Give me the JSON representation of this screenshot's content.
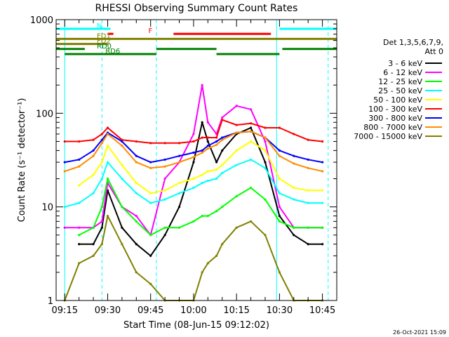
{
  "chart_data": {
    "type": "line",
    "title": "RHESSI Observing Summary Count Rates",
    "xlabel": "Start Time (08-Jun-15 09:12:02)",
    "ylabel": "Count Rate (s⁻¹ detector⁻¹)",
    "yscale": "log",
    "ylim": [
      1,
      1000
    ],
    "xlim": [
      "09:12",
      "10:50"
    ],
    "x_ticks": [
      "09:15",
      "09:30",
      "09:45",
      "10:00",
      "10:15",
      "10:30",
      "10:45"
    ],
    "y_ticks": [
      "1",
      "10",
      "100",
      "1000"
    ],
    "grid": false,
    "legend_position": "right",
    "legend_header": [
      "Det 1,3,5,6,7,9,",
      "Att 0"
    ],
    "timestamp": "26-Oct-2021 15:09",
    "x": [
      "09:15",
      "09:20",
      "09:25",
      "09:28",
      "09:30",
      "09:35",
      "09:40",
      "09:45",
      "09:50",
      "09:55",
      "10:00",
      "10:03",
      "10:05",
      "10:08",
      "10:10",
      "10:15",
      "10:20",
      "10:25",
      "10:30",
      "10:35",
      "10:40",
      "10:45"
    ],
    "series": [
      {
        "name": "3 - 6 keV",
        "color": "#000000",
        "values": [
          null,
          4,
          4,
          6,
          15,
          6,
          4,
          3,
          5,
          10,
          30,
          80,
          50,
          30,
          40,
          60,
          70,
          30,
          8,
          5,
          4,
          4
        ]
      },
      {
        "name": "6 - 12 keV",
        "color": "#ff00ff",
        "values": [
          6,
          6,
          6,
          7,
          18,
          10,
          8,
          5,
          20,
          30,
          60,
          200,
          80,
          60,
          90,
          120,
          110,
          50,
          10,
          6,
          6,
          6
        ]
      },
      {
        "name": "12 - 25 keV",
        "color": "#00ff00",
        "values": [
          null,
          5,
          6,
          10,
          20,
          10,
          7,
          5,
          6,
          6,
          7,
          8,
          8,
          9,
          10,
          13,
          16,
          12,
          7,
          6,
          6,
          6
        ]
      },
      {
        "name": "25 - 50 keV",
        "color": "#00ffff",
        "values": [
          10,
          11,
          14,
          20,
          30,
          20,
          14,
          11,
          12,
          14,
          16,
          18,
          19,
          20,
          23,
          28,
          32,
          26,
          14,
          12,
          11,
          11
        ]
      },
      {
        "name": "50 - 100 keV",
        "color": "#ffff00",
        "values": [
          null,
          17,
          22,
          30,
          45,
          28,
          18,
          14,
          15,
          18,
          20,
          22,
          24,
          25,
          28,
          40,
          50,
          40,
          20,
          16,
          15,
          15
        ]
      },
      {
        "name": "100 - 300 keV",
        "color": "#ff0000",
        "values": [
          50,
          50,
          52,
          60,
          70,
          52,
          50,
          48,
          48,
          48,
          50,
          55,
          55,
          55,
          85,
          75,
          78,
          70,
          70,
          60,
          52,
          50
        ]
      },
      {
        "name": "300 - 800 keV",
        "color": "#0000ff",
        "values": [
          30,
          32,
          40,
          52,
          62,
          50,
          35,
          30,
          32,
          35,
          38,
          40,
          45,
          50,
          55,
          62,
          64,
          55,
          40,
          35,
          32,
          30
        ]
      },
      {
        "name": "800 - 7000 keV",
        "color": "#ff8c00",
        "values": [
          24,
          27,
          35,
          48,
          60,
          45,
          30,
          26,
          27,
          30,
          34,
          38,
          42,
          46,
          52,
          62,
          64,
          55,
          35,
          29,
          26,
          24
        ]
      },
      {
        "name": "7000 - 15000 keV",
        "color": "#808000",
        "values": [
          1,
          2.5,
          3,
          4,
          8,
          4,
          2,
          1.5,
          1,
          1,
          1,
          2,
          2.5,
          3,
          4,
          6,
          7,
          5,
          2,
          1,
          1,
          1
        ]
      }
    ],
    "flags": [
      {
        "label": "N",
        "color": "#00ffff",
        "row": 0,
        "segments": [
          [
            "09:12",
            "09:31"
          ],
          [
            "10:30",
            "10:50"
          ]
        ]
      },
      {
        "label": "F",
        "color": "#ff0000",
        "row": 1,
        "segments": [
          [
            "09:30",
            "09:32"
          ],
          [
            "09:53",
            "10:27"
          ]
        ]
      },
      {
        "label": "FD1",
        "color": "#808000",
        "row": 2,
        "segments": [
          [
            "09:12",
            "10:50"
          ]
        ]
      },
      {
        "label": "FD2",
        "color": "#808000",
        "row": 3,
        "segments": [
          [
            "09:12",
            "09:30"
          ]
        ]
      },
      {
        "label": "RD0",
        "color": "#008000",
        "row": 4,
        "segments": [
          [
            "09:12",
            "09:22"
          ],
          [
            "09:47",
            "10:08"
          ],
          [
            "10:31",
            "10:50"
          ]
        ]
      },
      {
        "label": "RD6",
        "color": "#008000",
        "row": 5,
        "segments": [
          [
            "09:15",
            "09:47"
          ],
          [
            "10:08",
            "10:30"
          ]
        ]
      }
    ],
    "vertical_markers": [
      {
        "time": "09:15",
        "style": "solid",
        "color": "#00ffff"
      },
      {
        "time": "09:28",
        "style": "dashed",
        "color": "#00ffff"
      },
      {
        "time": "09:47",
        "style": "dashed",
        "color": "#00ffff"
      },
      {
        "time": "10:29",
        "style": "solid",
        "color": "#00ffff"
      },
      {
        "time": "10:47",
        "style": "dashed",
        "color": "#00ffff"
      }
    ]
  }
}
